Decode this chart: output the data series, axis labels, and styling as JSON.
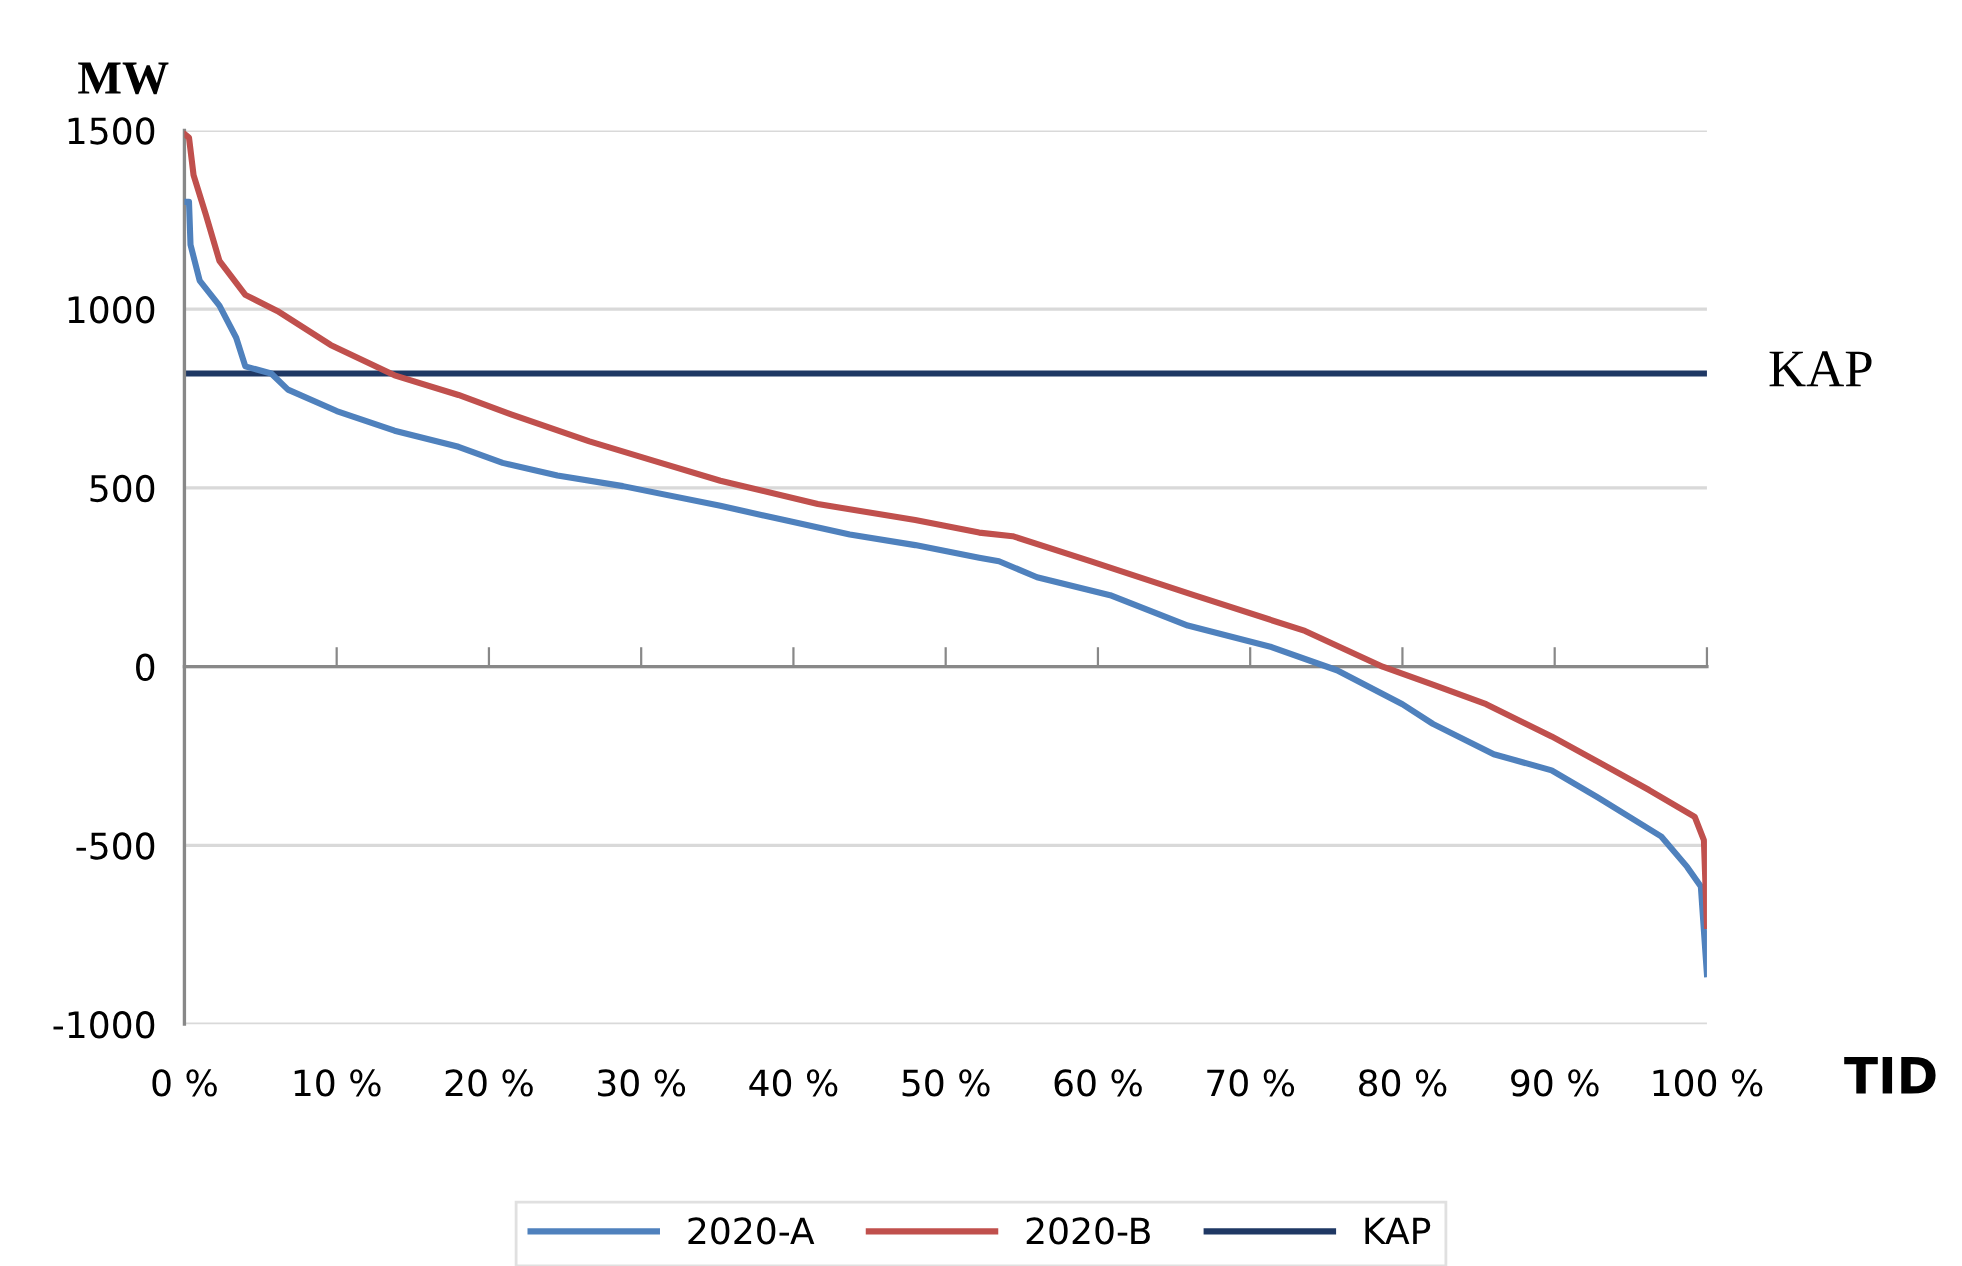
{
  "chart_data": {
    "type": "line",
    "xlabel": "TID",
    "ylabel": "MW",
    "series": [
      {
        "name": "2020-A",
        "color": "#4f81bd",
        "x": [
          0,
          0.3,
          0.4,
          1.0,
          2.3,
          3.4,
          4.0,
          5.7,
          6.8,
          10,
          13.8,
          18,
          20.9,
          24.5,
          28.8,
          35.2,
          39.4,
          43.7,
          48,
          52.2,
          53.5,
          56,
          60.8,
          65.9,
          71.4,
          75.7,
          80,
          82,
          86,
          89.8,
          92.8,
          97,
          98.7,
          99.6,
          100
        ],
        "values": [
          1300,
          1300,
          1180,
          1080,
          1010,
          920,
          840,
          820,
          775,
          715,
          660,
          615,
          570,
          535,
          505,
          450,
          410,
          370,
          340,
          305,
          295,
          250,
          200,
          115,
          55,
          -10,
          -105,
          -160,
          -245,
          -290,
          -365,
          -475,
          -560,
          -615,
          -860
        ]
      },
      {
        "name": "2020-B",
        "color": "#c0504d",
        "x": [
          0,
          0.3,
          0.6,
          1.4,
          2.3,
          4,
          6.1,
          9.6,
          13.8,
          18,
          21.5,
          26.6,
          30.9,
          35.2,
          41.6,
          48,
          52.2,
          54.4,
          59.5,
          66.3,
          73.6,
          78.7,
          82,
          85.5,
          89.8,
          92.8,
          96.2,
          99.2,
          99.8,
          100
        ],
        "values": [
          1490,
          1480,
          1375,
          1265,
          1135,
          1040,
          995,
          900,
          815,
          760,
          705,
          630,
          575,
          520,
          455,
          410,
          375,
          365,
          295,
          200,
          100,
          0,
          -50,
          -105,
          -195,
          -265,
          -345,
          -420,
          -485,
          -725
        ]
      }
    ],
    "ref_lines": [
      {
        "axis": "y",
        "value": 820,
        "label": "KAP",
        "color": "#1f3864"
      }
    ],
    "xlim": [
      0,
      100
    ],
    "xticks": [
      {
        "value": 0,
        "label": "0 %"
      },
      {
        "value": 10,
        "label": "10 %"
      },
      {
        "value": 20,
        "label": "20 %"
      },
      {
        "value": 30,
        "label": "30 %"
      },
      {
        "value": 40,
        "label": "40 %"
      },
      {
        "value": 50,
        "label": "50 %"
      },
      {
        "value": 60,
        "label": "60 %"
      },
      {
        "value": 70,
        "label": "70 %"
      },
      {
        "value": 80,
        "label": "80 %"
      },
      {
        "value": 90,
        "label": "90 %"
      },
      {
        "value": 100,
        "label": "100 %"
      }
    ],
    "ylim": [
      -1000,
      1500
    ],
    "yticks": [
      -1000,
      -500,
      0,
      500,
      1000,
      1500
    ],
    "grid": "y",
    "legend": "bottom",
    "line_style": "solid"
  }
}
